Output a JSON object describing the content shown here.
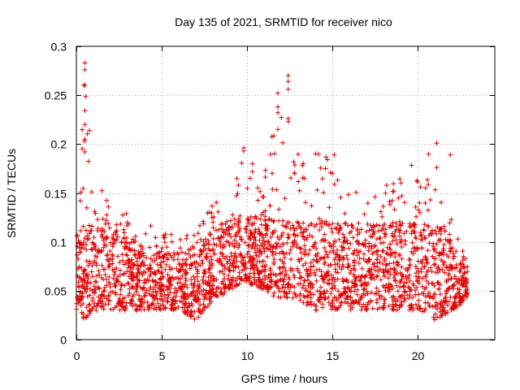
{
  "chart_data": {
    "type": "scatter",
    "title": "Day 135 of 2021, SRMTID for receiver nico",
    "xlabel": "GPS time / hours",
    "ylabel": "SRMTID / TECUs",
    "xlim": [
      0,
      24.5
    ],
    "ylim": [
      0,
      0.3
    ],
    "x_ticks": [
      0,
      5,
      10,
      15,
      20
    ],
    "x_tick_labels": [
      "0",
      "5",
      "10",
      "15",
      "20"
    ],
    "y_ticks": [
      0,
      0.05,
      0.1,
      0.15,
      0.2,
      0.25,
      0.3
    ],
    "y_tick_labels": [
      "0",
      "0.05",
      "0.1",
      "0.15",
      "0.2",
      "0.25",
      "0.3"
    ],
    "grid": true,
    "marker": "+",
    "color": "#e00000",
    "x_range_data": [
      0,
      22.9
    ],
    "envelope": [
      {
        "x": 0.0,
        "lo": 0.03,
        "hi": 0.14
      },
      {
        "x": 0.5,
        "lo": 0.02,
        "hi": 0.28
      },
      {
        "x": 1.0,
        "lo": 0.03,
        "hi": 0.16
      },
      {
        "x": 2.0,
        "lo": 0.03,
        "hi": 0.15
      },
      {
        "x": 3.0,
        "lo": 0.03,
        "hi": 0.13
      },
      {
        "x": 4.0,
        "lo": 0.03,
        "hi": 0.12
      },
      {
        "x": 5.0,
        "lo": 0.03,
        "hi": 0.11
      },
      {
        "x": 6.0,
        "lo": 0.03,
        "hi": 0.11
      },
      {
        "x": 7.0,
        "lo": 0.02,
        "hi": 0.11
      },
      {
        "x": 8.0,
        "lo": 0.04,
        "hi": 0.14
      },
      {
        "x": 9.0,
        "lo": 0.05,
        "hi": 0.15
      },
      {
        "x": 9.8,
        "lo": 0.06,
        "hi": 0.196
      },
      {
        "x": 11.0,
        "lo": 0.05,
        "hi": 0.17
      },
      {
        "x": 12.0,
        "lo": 0.04,
        "hi": 0.27
      },
      {
        "x": 13.0,
        "lo": 0.04,
        "hi": 0.19
      },
      {
        "x": 14.0,
        "lo": 0.03,
        "hi": 0.19
      },
      {
        "x": 15.0,
        "lo": 0.03,
        "hi": 0.19
      },
      {
        "x": 16.0,
        "lo": 0.03,
        "hi": 0.17
      },
      {
        "x": 17.0,
        "lo": 0.03,
        "hi": 0.14
      },
      {
        "x": 18.0,
        "lo": 0.03,
        "hi": 0.16
      },
      {
        "x": 19.0,
        "lo": 0.03,
        "hi": 0.18
      },
      {
        "x": 20.0,
        "lo": 0.03,
        "hi": 0.18
      },
      {
        "x": 21.0,
        "lo": 0.02,
        "hi": 0.2
      },
      {
        "x": 22.0,
        "lo": 0.03,
        "hi": 0.12
      },
      {
        "x": 22.9,
        "lo": 0.04,
        "hi": 0.08
      }
    ],
    "notable_points": [
      {
        "x": 0.5,
        "y": 0.283
      },
      {
        "x": 0.5,
        "y": 0.276
      },
      {
        "x": 0.5,
        "y": 0.26
      },
      {
        "x": 0.5,
        "y": 0.22
      },
      {
        "x": 0.5,
        "y": 0.205
      },
      {
        "x": 0.5,
        "y": 0.192
      },
      {
        "x": 9.8,
        "y": 0.196
      },
      {
        "x": 9.8,
        "y": 0.193
      },
      {
        "x": 11.8,
        "y": 0.252
      },
      {
        "x": 11.8,
        "y": 0.238
      },
      {
        "x": 11.8,
        "y": 0.232
      },
      {
        "x": 11.8,
        "y": 0.215
      },
      {
        "x": 12.4,
        "y": 0.27
      },
      {
        "x": 12.4,
        "y": 0.264
      },
      {
        "x": 12.4,
        "y": 0.256
      },
      {
        "x": 12.4,
        "y": 0.226
      },
      {
        "x": 14.0,
        "y": 0.19
      },
      {
        "x": 15.1,
        "y": 0.189
      },
      {
        "x": 21.1,
        "y": 0.201
      },
      {
        "x": 21.1,
        "y": 0.176
      },
      {
        "x": 21.9,
        "y": 0.189
      }
    ]
  }
}
